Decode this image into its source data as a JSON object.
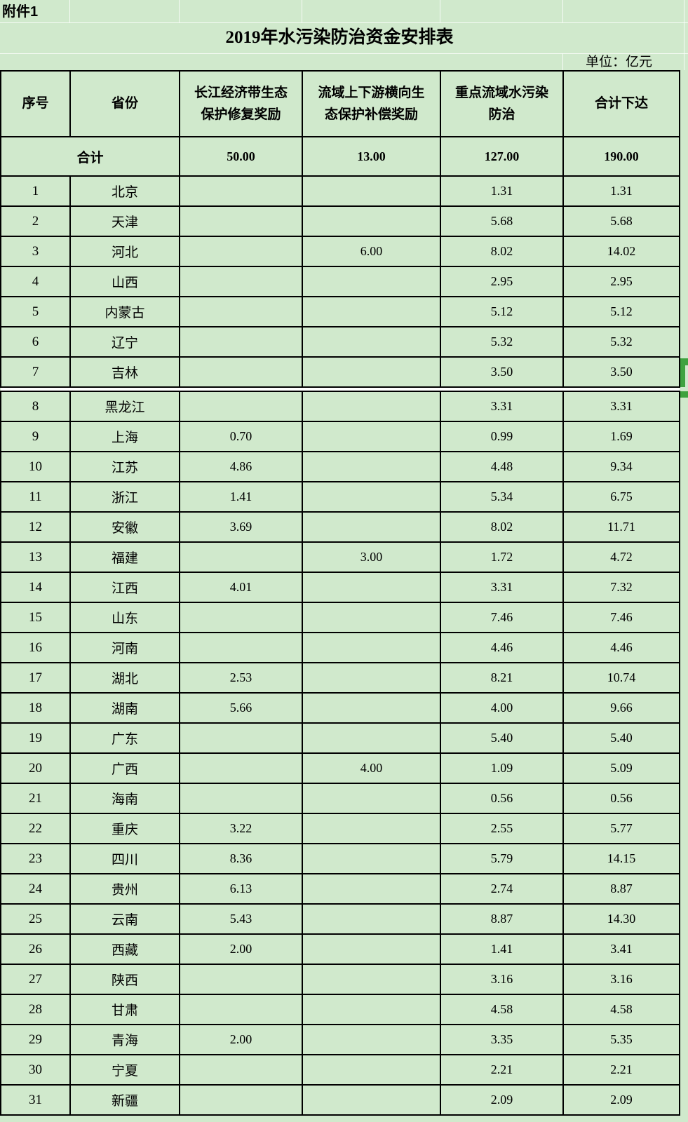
{
  "sheet": {
    "attachment_label": "附件1",
    "title": "2019年水污染防治资金安排表",
    "unit_label": "单位：亿元"
  },
  "table": {
    "headers": {
      "index": "序号",
      "province": "省份",
      "yangtze": "长江经济带生态\n保护修复奖励",
      "basin": "流域上下游横向生\n态保护补偿奖励",
      "key_basin": "重点流域水污染\n防治",
      "total": "合计下达"
    },
    "total_row": {
      "label": "合计",
      "yangtze": "50.00",
      "basin": "13.00",
      "key_basin": "127.00",
      "total": "190.00"
    },
    "rows": [
      [
        "1",
        "北京",
        "",
        "",
        "1.31",
        "1.31"
      ],
      [
        "2",
        "天津",
        "",
        "",
        "5.68",
        "5.68"
      ],
      [
        "3",
        "河北",
        "",
        "6.00",
        "8.02",
        "14.02"
      ],
      [
        "4",
        "山西",
        "",
        "",
        "2.95",
        "2.95"
      ],
      [
        "5",
        "内蒙古",
        "",
        "",
        "5.12",
        "5.12"
      ],
      [
        "6",
        "辽宁",
        "",
        "",
        "5.32",
        "5.32"
      ],
      [
        "7",
        "吉林",
        "",
        "",
        "3.50",
        "3.50"
      ],
      [
        "8",
        "黑龙江",
        "",
        "",
        "3.31",
        "3.31"
      ],
      [
        "9",
        "上海",
        "0.70",
        "",
        "0.99",
        "1.69"
      ],
      [
        "10",
        "江苏",
        "4.86",
        "",
        "4.48",
        "9.34"
      ],
      [
        "11",
        "浙江",
        "1.41",
        "",
        "5.34",
        "6.75"
      ],
      [
        "12",
        "安徽",
        "3.69",
        "",
        "8.02",
        "11.71"
      ],
      [
        "13",
        "福建",
        "",
        "3.00",
        "1.72",
        "4.72"
      ],
      [
        "14",
        "江西",
        "4.01",
        "",
        "3.31",
        "7.32"
      ],
      [
        "15",
        "山东",
        "",
        "",
        "7.46",
        "7.46"
      ],
      [
        "16",
        "河南",
        "",
        "",
        "4.46",
        "4.46"
      ],
      [
        "17",
        "湖北",
        "2.53",
        "",
        "8.21",
        "10.74"
      ],
      [
        "18",
        "湖南",
        "5.66",
        "",
        "4.00",
        "9.66"
      ],
      [
        "19",
        "广东",
        "",
        "",
        "5.40",
        "5.40"
      ],
      [
        "20",
        "广西",
        "",
        "4.00",
        "1.09",
        "5.09"
      ],
      [
        "21",
        "海南",
        "",
        "",
        "0.56",
        "0.56"
      ],
      [
        "22",
        "重庆",
        "3.22",
        "",
        "2.55",
        "5.77"
      ],
      [
        "23",
        "四川",
        "8.36",
        "",
        "5.79",
        "14.15"
      ],
      [
        "24",
        "贵州",
        "6.13",
        "",
        "2.74",
        "8.87"
      ],
      [
        "25",
        "云南",
        "5.43",
        "",
        "8.87",
        "14.30"
      ],
      [
        "26",
        "西藏",
        "2.00",
        "",
        "1.41",
        "3.41"
      ],
      [
        "27",
        "陕西",
        "",
        "",
        "3.16",
        "3.16"
      ],
      [
        "28",
        "甘肃",
        "",
        "",
        "4.58",
        "4.58"
      ],
      [
        "29",
        "青海",
        "2.00",
        "",
        "3.35",
        "5.35"
      ],
      [
        "30",
        "宁夏",
        "",
        "",
        "2.21",
        "2.21"
      ],
      [
        "31",
        "新疆",
        "",
        "",
        "2.09",
        "2.09"
      ]
    ],
    "split_after_row": 7,
    "selection_marker_row": "7"
  },
  "colors": {
    "sheet_background": "#d0e9cc",
    "cell_border": "#000000",
    "split_band": "#ffffff",
    "selection_green": "#3fa23f",
    "gridline": "#edf6ea"
  }
}
